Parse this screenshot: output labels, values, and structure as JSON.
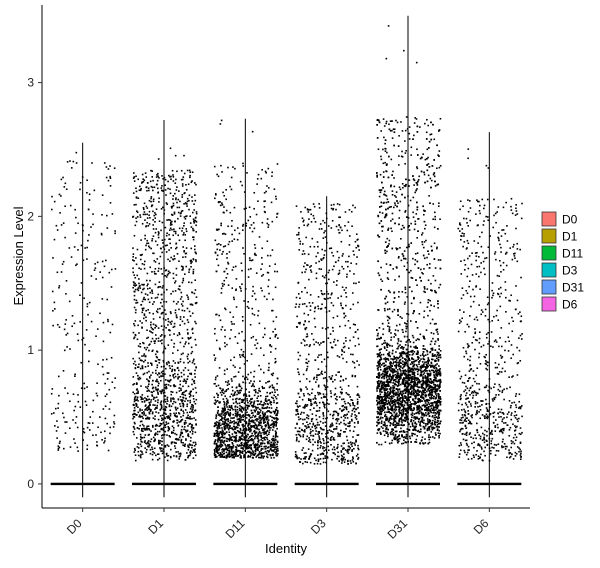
{
  "chart_data": {
    "type": "scatter",
    "subtype": "jittered violin/strip plot",
    "xlabel": "Identity",
    "ylabel": "Expression Level",
    "categories": [
      "D0",
      "D1",
      "D11",
      "D3",
      "D31",
      "D6"
    ],
    "ylim": [
      -0.18,
      3.58
    ],
    "yticks": [
      0,
      1,
      2,
      3
    ],
    "grid": false,
    "legend_position": "right",
    "legend": [
      {
        "label": "D0",
        "color": "#F8766D"
      },
      {
        "label": "D1",
        "color": "#B79F00"
      },
      {
        "label": "D11",
        "color": "#00BA38"
      },
      {
        "label": "D3",
        "color": "#00BFC4"
      },
      {
        "label": "D31",
        "color": "#619CFF"
      },
      {
        "label": "D6",
        "color": "#F564E3"
      }
    ],
    "series": [
      {
        "name": "D0",
        "max": 2.55,
        "points_above_zero": 260,
        "distribution": "sparse, spread 0.3–2.5"
      },
      {
        "name": "D1",
        "max": 2.72,
        "points_above_zero": 1500,
        "distribution": "dense, spread 0.2–2.3"
      },
      {
        "name": "D11",
        "max": 2.73,
        "points_above_zero": 1600,
        "distribution": "concentrated 0.2–0.6, sparse above"
      },
      {
        "name": "D3",
        "max": 2.15,
        "points_above_zero": 900,
        "distribution": "moderate, 0.2–2.1"
      },
      {
        "name": "D31",
        "max": 3.5,
        "points_above_zero": 3200,
        "distribution": "very dense 0.3–1.2, up to 3.5"
      },
      {
        "name": "D6",
        "max": 2.63,
        "points_above_zero": 700,
        "distribution": "moderate, 0.2–2.1"
      }
    ]
  }
}
